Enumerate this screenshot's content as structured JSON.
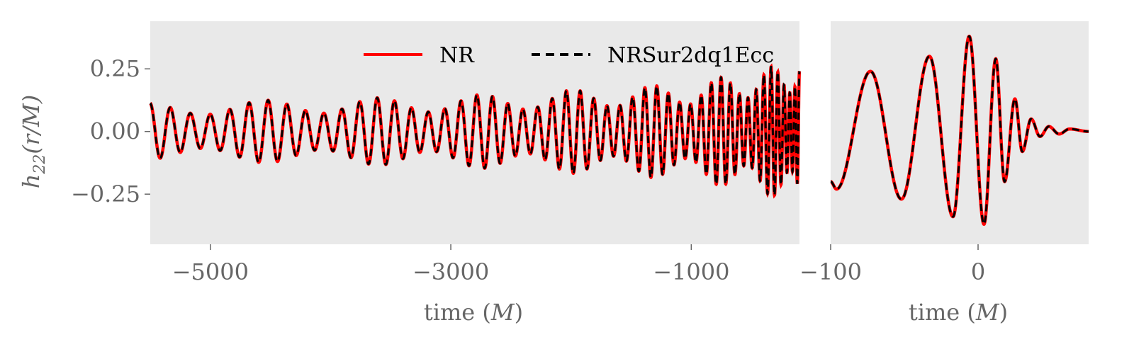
{
  "chart_data": {
    "type": "line",
    "colors": {
      "panel_background": "#e9e9e9",
      "nr": "#ff0000",
      "surrogate": "#000000",
      "axis_text": "#666666"
    },
    "grid": false,
    "legend": {
      "placement": "top-right of left panel",
      "entries": [
        {
          "label": "NR",
          "style": "solid",
          "color": "#ff0000"
        },
        {
          "label": "NRSur2dq1Ecc",
          "style": "dashed",
          "color": "#000000"
        }
      ]
    },
    "ylabel_tex": {
      "h": "h",
      "sub": "22",
      "rest": "(r/M)"
    },
    "panels": [
      {
        "xlabel_prefix": "time (",
        "xlabel_unit": "M",
        "xlabel_suffix": ")",
        "xlim": [
          -5500,
          -100
        ],
        "ylim": [
          -0.45,
          0.44
        ],
        "xticks": [
          {
            "value": -5000,
            "label": "−5000"
          },
          {
            "value": -3000,
            "label": "−3000"
          },
          {
            "value": -1000,
            "label": "−1000"
          }
        ],
        "yticks": [
          {
            "value": 0.25,
            "label": "0.25"
          },
          {
            "value": 0.0,
            "label": "0.00"
          },
          {
            "value": -0.25,
            "label": "−0.25"
          }
        ],
        "series": [
          {
            "name": "NR",
            "description_points": [
              {
                "x": -5500,
                "amplitude": 0.09
              },
              {
                "x": -3000,
                "amplitude": 0.11
              },
              {
                "x": -1000,
                "amplitude": 0.15
              },
              {
                "x": -100,
                "amplitude": 0.22
              }
            ],
            "approx_cycles": 48
          },
          {
            "name": "NRSur2dq1Ecc",
            "approx_cycles": 48
          }
        ]
      },
      {
        "xlabel_prefix": "time (",
        "xlabel_unit": "M",
        "xlabel_suffix": ")",
        "xlim": [
          -100,
          75
        ],
        "ylim": [
          -0.45,
          0.44
        ],
        "xticks": [
          {
            "value": -100,
            "label": "−100"
          },
          {
            "value": 0,
            "label": "0"
          }
        ],
        "peaks": [
          {
            "x": -100,
            "y": -0.2
          },
          {
            "x": -96,
            "y": -0.23
          },
          {
            "x": -73,
            "y": 0.24
          },
          {
            "x": -52,
            "y": -0.27
          },
          {
            "x": -33,
            "y": 0.3
          },
          {
            "x": -17,
            "y": -0.34
          },
          {
            "x": -6,
            "y": 0.38
          },
          {
            "x": 4,
            "y": -0.37
          },
          {
            "x": 12,
            "y": 0.29
          },
          {
            "x": 18,
            "y": -0.2
          },
          {
            "x": 25,
            "y": 0.13
          },
          {
            "x": 30,
            "y": -0.08
          },
          {
            "x": 36,
            "y": 0.05
          },
          {
            "x": 42,
            "y": -0.02
          },
          {
            "x": 48,
            "y": 0.02
          },
          {
            "x": 55,
            "y": -0.01
          },
          {
            "x": 62,
            "y": 0.01
          },
          {
            "x": 75,
            "y": 0.0
          }
        ]
      }
    ]
  }
}
